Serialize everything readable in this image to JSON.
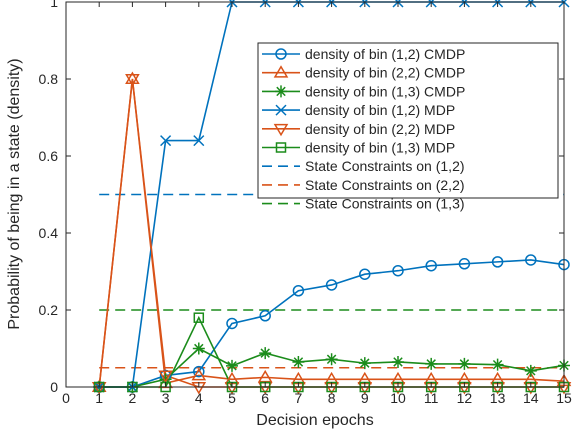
{
  "chart_data": {
    "type": "line",
    "xlabel": "Decision epochs",
    "ylabel": "Probability of being in  a state (density)",
    "xlim": [
      0,
      15
    ],
    "ylim": [
      0,
      1.0
    ],
    "xticks": [
      "0",
      "1",
      "2",
      "3",
      "4",
      "5",
      "6",
      "7",
      "8",
      "9",
      "10",
      "11",
      "12",
      "13",
      "14",
      "15"
    ],
    "yticks": [
      "0",
      "0.2",
      "0.4",
      "0.6",
      "0.8",
      "1"
    ],
    "grid": false,
    "legend_position": "top-right",
    "x": [
      1,
      2,
      3,
      4,
      5,
      6,
      7,
      8,
      9,
      10,
      11,
      12,
      13,
      14,
      15
    ],
    "series": [
      {
        "name": "density of bin (1,2) CMDP",
        "color": "#0072BD",
        "marker": "circle",
        "dash": "solid",
        "values": [
          0,
          0,
          0.03,
          0.04,
          0.165,
          0.185,
          0.25,
          0.265,
          0.293,
          0.302,
          0.315,
          0.32,
          0.325,
          0.33,
          0.318
        ]
      },
      {
        "name": "density of bin (2,2) CMDP",
        "color": "#D95319",
        "marker": "triangle-up",
        "dash": "solid",
        "values": [
          0,
          0.8,
          0.01,
          0.03,
          0.02,
          0.025,
          0.02,
          0.02,
          0.02,
          0.02,
          0.02,
          0.02,
          0.02,
          0.02,
          0.015
        ]
      },
      {
        "name": "density of bin (1,3) CMDP",
        "color": "#1B8C1B",
        "marker": "asterisk",
        "dash": "solid",
        "values": [
          0,
          0,
          0.02,
          0.1,
          0.055,
          0.088,
          0.065,
          0.072,
          0.062,
          0.065,
          0.06,
          0.06,
          0.058,
          0.042,
          0.056
        ]
      },
      {
        "name": "density of bin (1,2) MDP",
        "color": "#0072BD",
        "marker": "x",
        "dash": "solid",
        "values": [
          0,
          0,
          0.64,
          0.64,
          1,
          1,
          1,
          1,
          1,
          1,
          1,
          1,
          1,
          1,
          1
        ]
      },
      {
        "name": "density of bin (2,2) MDP",
        "color": "#D95319",
        "marker": "triangle-down",
        "dash": "solid",
        "values": [
          0,
          0.8,
          0.03,
          0,
          0,
          0,
          0,
          0,
          0,
          0,
          0,
          0,
          0,
          0,
          0
        ]
      },
      {
        "name": "density of bin (1,3) MDP",
        "color": "#1B8C1B",
        "marker": "square",
        "dash": "solid",
        "values": [
          0,
          0,
          0,
          0.18,
          0,
          0,
          0,
          0,
          0,
          0,
          0,
          0,
          0,
          0,
          0
        ]
      },
      {
        "name": "State Constraints on (1,2)",
        "color": "#0072BD",
        "marker": "none",
        "dash": "dashed",
        "values": [
          0.5,
          0.5,
          0.5,
          0.5,
          0.5,
          0.5,
          0.5,
          0.5,
          0.5,
          0.5,
          0.5,
          0.5,
          0.5,
          0.5,
          0.5
        ]
      },
      {
        "name": "State Constraints on (2,2)",
        "color": "#D95319",
        "marker": "none",
        "dash": "dashed",
        "values": [
          0.05,
          0.05,
          0.05,
          0.05,
          0.05,
          0.05,
          0.05,
          0.05,
          0.05,
          0.05,
          0.05,
          0.05,
          0.05,
          0.05,
          0.05
        ]
      },
      {
        "name": "State Constraints on (1,3)",
        "color": "#1B8C1B",
        "marker": "none",
        "dash": "dashed",
        "values": [
          0.2,
          0.2,
          0.2,
          0.2,
          0.2,
          0.2,
          0.2,
          0.2,
          0.2,
          0.2,
          0.2,
          0.2,
          0.2,
          0.2,
          0.2
        ]
      }
    ]
  }
}
